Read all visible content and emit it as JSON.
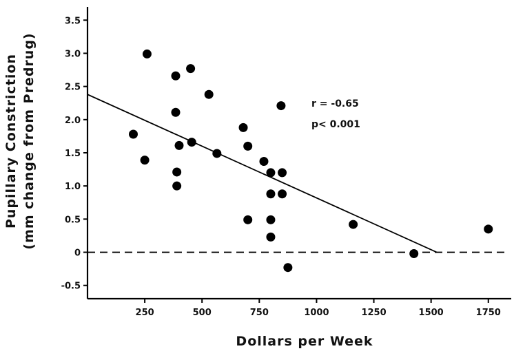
{
  "chart_data": {
    "type": "scatter",
    "title": "",
    "xlabel": "Dollars per Week",
    "ylabel_lines": [
      "Pupillary Constriction",
      "(mm change from Predrug)"
    ],
    "xlim": [
      0,
      1850
    ],
    "ylim": [
      -0.7,
      3.7
    ],
    "x_ticks": [
      250,
      500,
      750,
      1000,
      1250,
      1500,
      1750
    ],
    "x_tick_labels": [
      "250",
      "500",
      "750",
      "1000",
      "1250",
      "1500",
      "1750"
    ],
    "y_ticks": [
      -0.5,
      0,
      0.5,
      1.0,
      1.5,
      2.0,
      2.5,
      3.0,
      3.5
    ],
    "y_tick_labels": [
      "-0.5",
      "0",
      "0.5",
      "1.0",
      "1.5",
      "2.0",
      "2.5",
      "3.0",
      "3.5"
    ],
    "points": [
      {
        "x": 200,
        "y": 1.78
      },
      {
        "x": 250,
        "y": 1.39
      },
      {
        "x": 260,
        "y": 2.99
      },
      {
        "x": 385,
        "y": 2.66
      },
      {
        "x": 385,
        "y": 2.11
      },
      {
        "x": 390,
        "y": 1.21
      },
      {
        "x": 390,
        "y": 1.0
      },
      {
        "x": 400,
        "y": 1.61
      },
      {
        "x": 450,
        "y": 2.77
      },
      {
        "x": 455,
        "y": 1.66
      },
      {
        "x": 530,
        "y": 2.38
      },
      {
        "x": 565,
        "y": 1.49
      },
      {
        "x": 680,
        "y": 1.88
      },
      {
        "x": 700,
        "y": 1.6
      },
      {
        "x": 700,
        "y": 0.49
      },
      {
        "x": 770,
        "y": 1.37
      },
      {
        "x": 800,
        "y": 1.2
      },
      {
        "x": 800,
        "y": 0.88
      },
      {
        "x": 800,
        "y": 0.49
      },
      {
        "x": 800,
        "y": 0.23
      },
      {
        "x": 845,
        "y": 2.21
      },
      {
        "x": 850,
        "y": 1.2
      },
      {
        "x": 850,
        "y": 0.88
      },
      {
        "x": 875,
        "y": -0.23
      },
      {
        "x": 1160,
        "y": 0.42
      },
      {
        "x": 1425,
        "y": -0.02
      },
      {
        "x": 1750,
        "y": 0.35
      }
    ],
    "regression_line": {
      "x": [
        0,
        1525
      ],
      "y": [
        2.38,
        0
      ]
    },
    "zero_reference_line": {
      "y": 0,
      "style": "dashed"
    },
    "annotations": [
      "r = -0.65",
      "p< 0.001"
    ],
    "grid": false,
    "legend": "none"
  }
}
